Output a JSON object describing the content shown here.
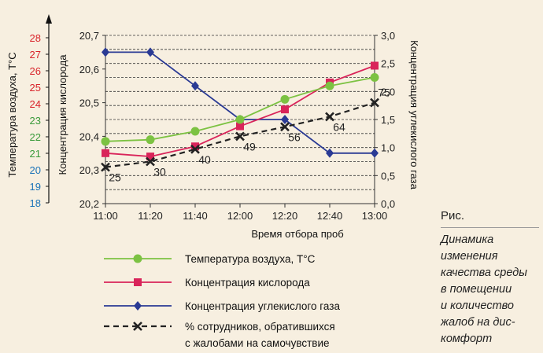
{
  "chart_data": {
    "type": "line",
    "xlabel": "Время отбора проб",
    "categories": [
      "11:00",
      "11:20",
      "11:40",
      "12:00",
      "12:20",
      "12:40",
      "13:00"
    ],
    "axes": {
      "temp": {
        "label": "Температура воздуха, Т°С",
        "range": [
          18,
          28
        ],
        "ticks": [
          {
            "v": 18,
            "t": "18",
            "color": "#1a73b8"
          },
          {
            "v": 19,
            "t": "19",
            "color": "#1a73b8"
          },
          {
            "v": 20,
            "t": "20",
            "color": "#1a73b8"
          },
          {
            "v": 21,
            "t": "21",
            "color": "#3a9a3a"
          },
          {
            "v": 22,
            "t": "22",
            "color": "#3a9a3a"
          },
          {
            "v": 23,
            "t": "23",
            "color": "#3a9a3a"
          },
          {
            "v": 24,
            "t": "24",
            "color": "#d9232a"
          },
          {
            "v": 25,
            "t": "25",
            "color": "#d9232a"
          },
          {
            "v": 26,
            "t": "26",
            "color": "#d9232a"
          },
          {
            "v": 27,
            "t": "27",
            "color": "#d9232a"
          },
          {
            "v": 28,
            "t": "28",
            "color": "#d9232a"
          }
        ]
      },
      "oxygen": {
        "label": "Концентрация кислорода",
        "range": [
          20.2,
          20.7
        ],
        "ticks": [
          "20,2",
          "20,3",
          "20,4",
          "20,5",
          "20,6",
          "20,7"
        ]
      },
      "co2": {
        "label": "Концентрация углекислого газа",
        "range": [
          0,
          3
        ],
        "ticks": [
          "0,0",
          "0,5",
          "1,0",
          "1,5",
          "2,0",
          "2,5",
          "3,0"
        ]
      }
    },
    "grid": "horizontal dashed",
    "series": [
      {
        "name": "Температура воздуха, Т°С",
        "axis": "temp",
        "color": "#7cc242",
        "marker": "circle",
        "values": [
          21.7,
          21.8,
          22.3,
          23.0,
          24.2,
          25.0,
          25.5
        ]
      },
      {
        "name": "Концентрация кислорода",
        "axis": "oxygen",
        "color": "#d9245a",
        "marker": "square",
        "values": [
          20.35,
          20.34,
          20.37,
          20.43,
          20.48,
          20.56,
          20.61
        ]
      },
      {
        "name": "Концентрация углекислого газа",
        "axis": "co2",
        "color": "#2a3a94",
        "marker": "diamond",
        "values": [
          2.7,
          2.7,
          2.1,
          1.5,
          1.5,
          0.9,
          0.9
        ]
      },
      {
        "name": "% сотрудников, обратившихся\nс жалобами на  самочувствие",
        "axis": "co2",
        "color": "#222222",
        "marker": "x",
        "dashed": true,
        "values": [
          0.65,
          0.75,
          0.97,
          1.2,
          1.37,
          1.55,
          1.8
        ],
        "labels": [
          "25",
          "30",
          "40",
          "49",
          "56",
          "64",
          "75"
        ]
      }
    ]
  },
  "legend": [
    {
      "text": "Температура воздуха, Т°С"
    },
    {
      "text": "Концентрация кислорода"
    },
    {
      "text": "Концентрация углекислого газа"
    },
    {
      "text": "% сотрудников, обратившихся",
      "text2": "с жалобами на  самочувствие"
    }
  ],
  "caption": {
    "title": "Рис.",
    "text": "Динамика\nизменения\nкачества среды\nв помещении\nи количество\nжалоб на дис-\nкомфорт"
  }
}
